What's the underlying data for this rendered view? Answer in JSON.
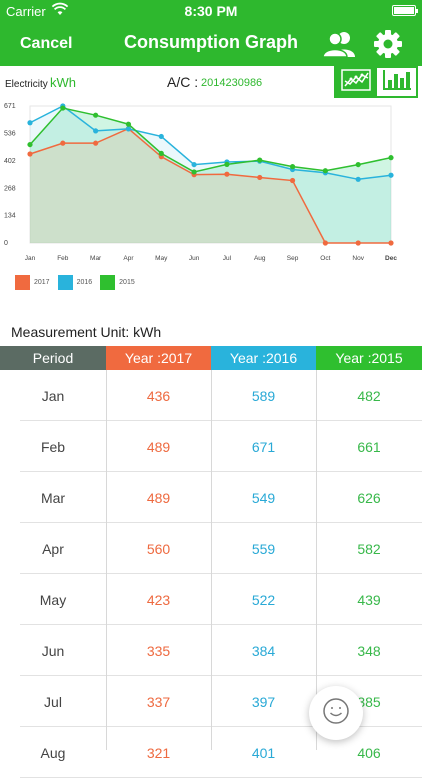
{
  "status": {
    "carrier": "Carrier",
    "time": "8:30 PM"
  },
  "nav": {
    "cancel_label": "Cancel",
    "title": "Consumption Graph"
  },
  "info": {
    "electricity_label": "Electricity",
    "unit": "kWh",
    "ac_label": "A/C :",
    "ac_value": "2014230986"
  },
  "colors": {
    "header": "#2eb82e",
    "y2017": "#f06a3f",
    "y2016": "#29b3dc",
    "y2015": "#2fbf2f",
    "period": "#5b6b63"
  },
  "icons": [
    "wifi-icon",
    "battery-icon",
    "users-icon",
    "gear-icon",
    "line-chart-icon",
    "bar-chart-icon",
    "smiley-icon"
  ],
  "chart_data": {
    "type": "line",
    "categories": [
      "Jan",
      "Feb",
      "Mar",
      "Apr",
      "May",
      "Jun",
      "Jul",
      "Aug",
      "Sep",
      "Oct",
      "Nov",
      "Dec"
    ],
    "yticks": [
      "671",
      "536",
      "402",
      "268",
      "134",
      "0"
    ],
    "ylim": [
      0,
      671
    ],
    "series": [
      {
        "name": "2017",
        "color": "#f06a3f",
        "values": [
          436,
          489,
          489,
          560,
          423,
          335,
          337,
          321,
          306,
          0,
          0,
          0
        ]
      },
      {
        "name": "2016",
        "color": "#29b3dc",
        "values": [
          589,
          671,
          549,
          559,
          522,
          384,
          397,
          401,
          360,
          344,
          312,
          332
        ]
      },
      {
        "name": "2015",
        "color": "#2fbf2f",
        "values": [
          482,
          661,
          626,
          582,
          439,
          348,
          385,
          406,
          374,
          354,
          384,
          418
        ]
      }
    ],
    "legend": [
      "2017",
      "2016",
      "2015"
    ]
  },
  "measurement_label": "Measurement Unit: kWh",
  "table": {
    "headers": {
      "period": "Period",
      "y2017": "Year :2017",
      "y2016": "Year :2016",
      "y2015": "Year :2015"
    },
    "rows": [
      {
        "period": "Jan",
        "y2017": "436",
        "y2016": "589",
        "y2015": "482"
      },
      {
        "period": "Feb",
        "y2017": "489",
        "y2016": "671",
        "y2015": "661"
      },
      {
        "period": "Mar",
        "y2017": "489",
        "y2016": "549",
        "y2015": "626"
      },
      {
        "period": "Apr",
        "y2017": "560",
        "y2016": "559",
        "y2015": "582"
      },
      {
        "period": "May",
        "y2017": "423",
        "y2016": "522",
        "y2015": "439"
      },
      {
        "period": "Jun",
        "y2017": "335",
        "y2016": "384",
        "y2015": "348"
      },
      {
        "period": "Jul",
        "y2017": "337",
        "y2016": "397",
        "y2015": "385"
      },
      {
        "period": "Aug",
        "y2017": "321",
        "y2016": "401",
        "y2015": "406"
      }
    ]
  }
}
